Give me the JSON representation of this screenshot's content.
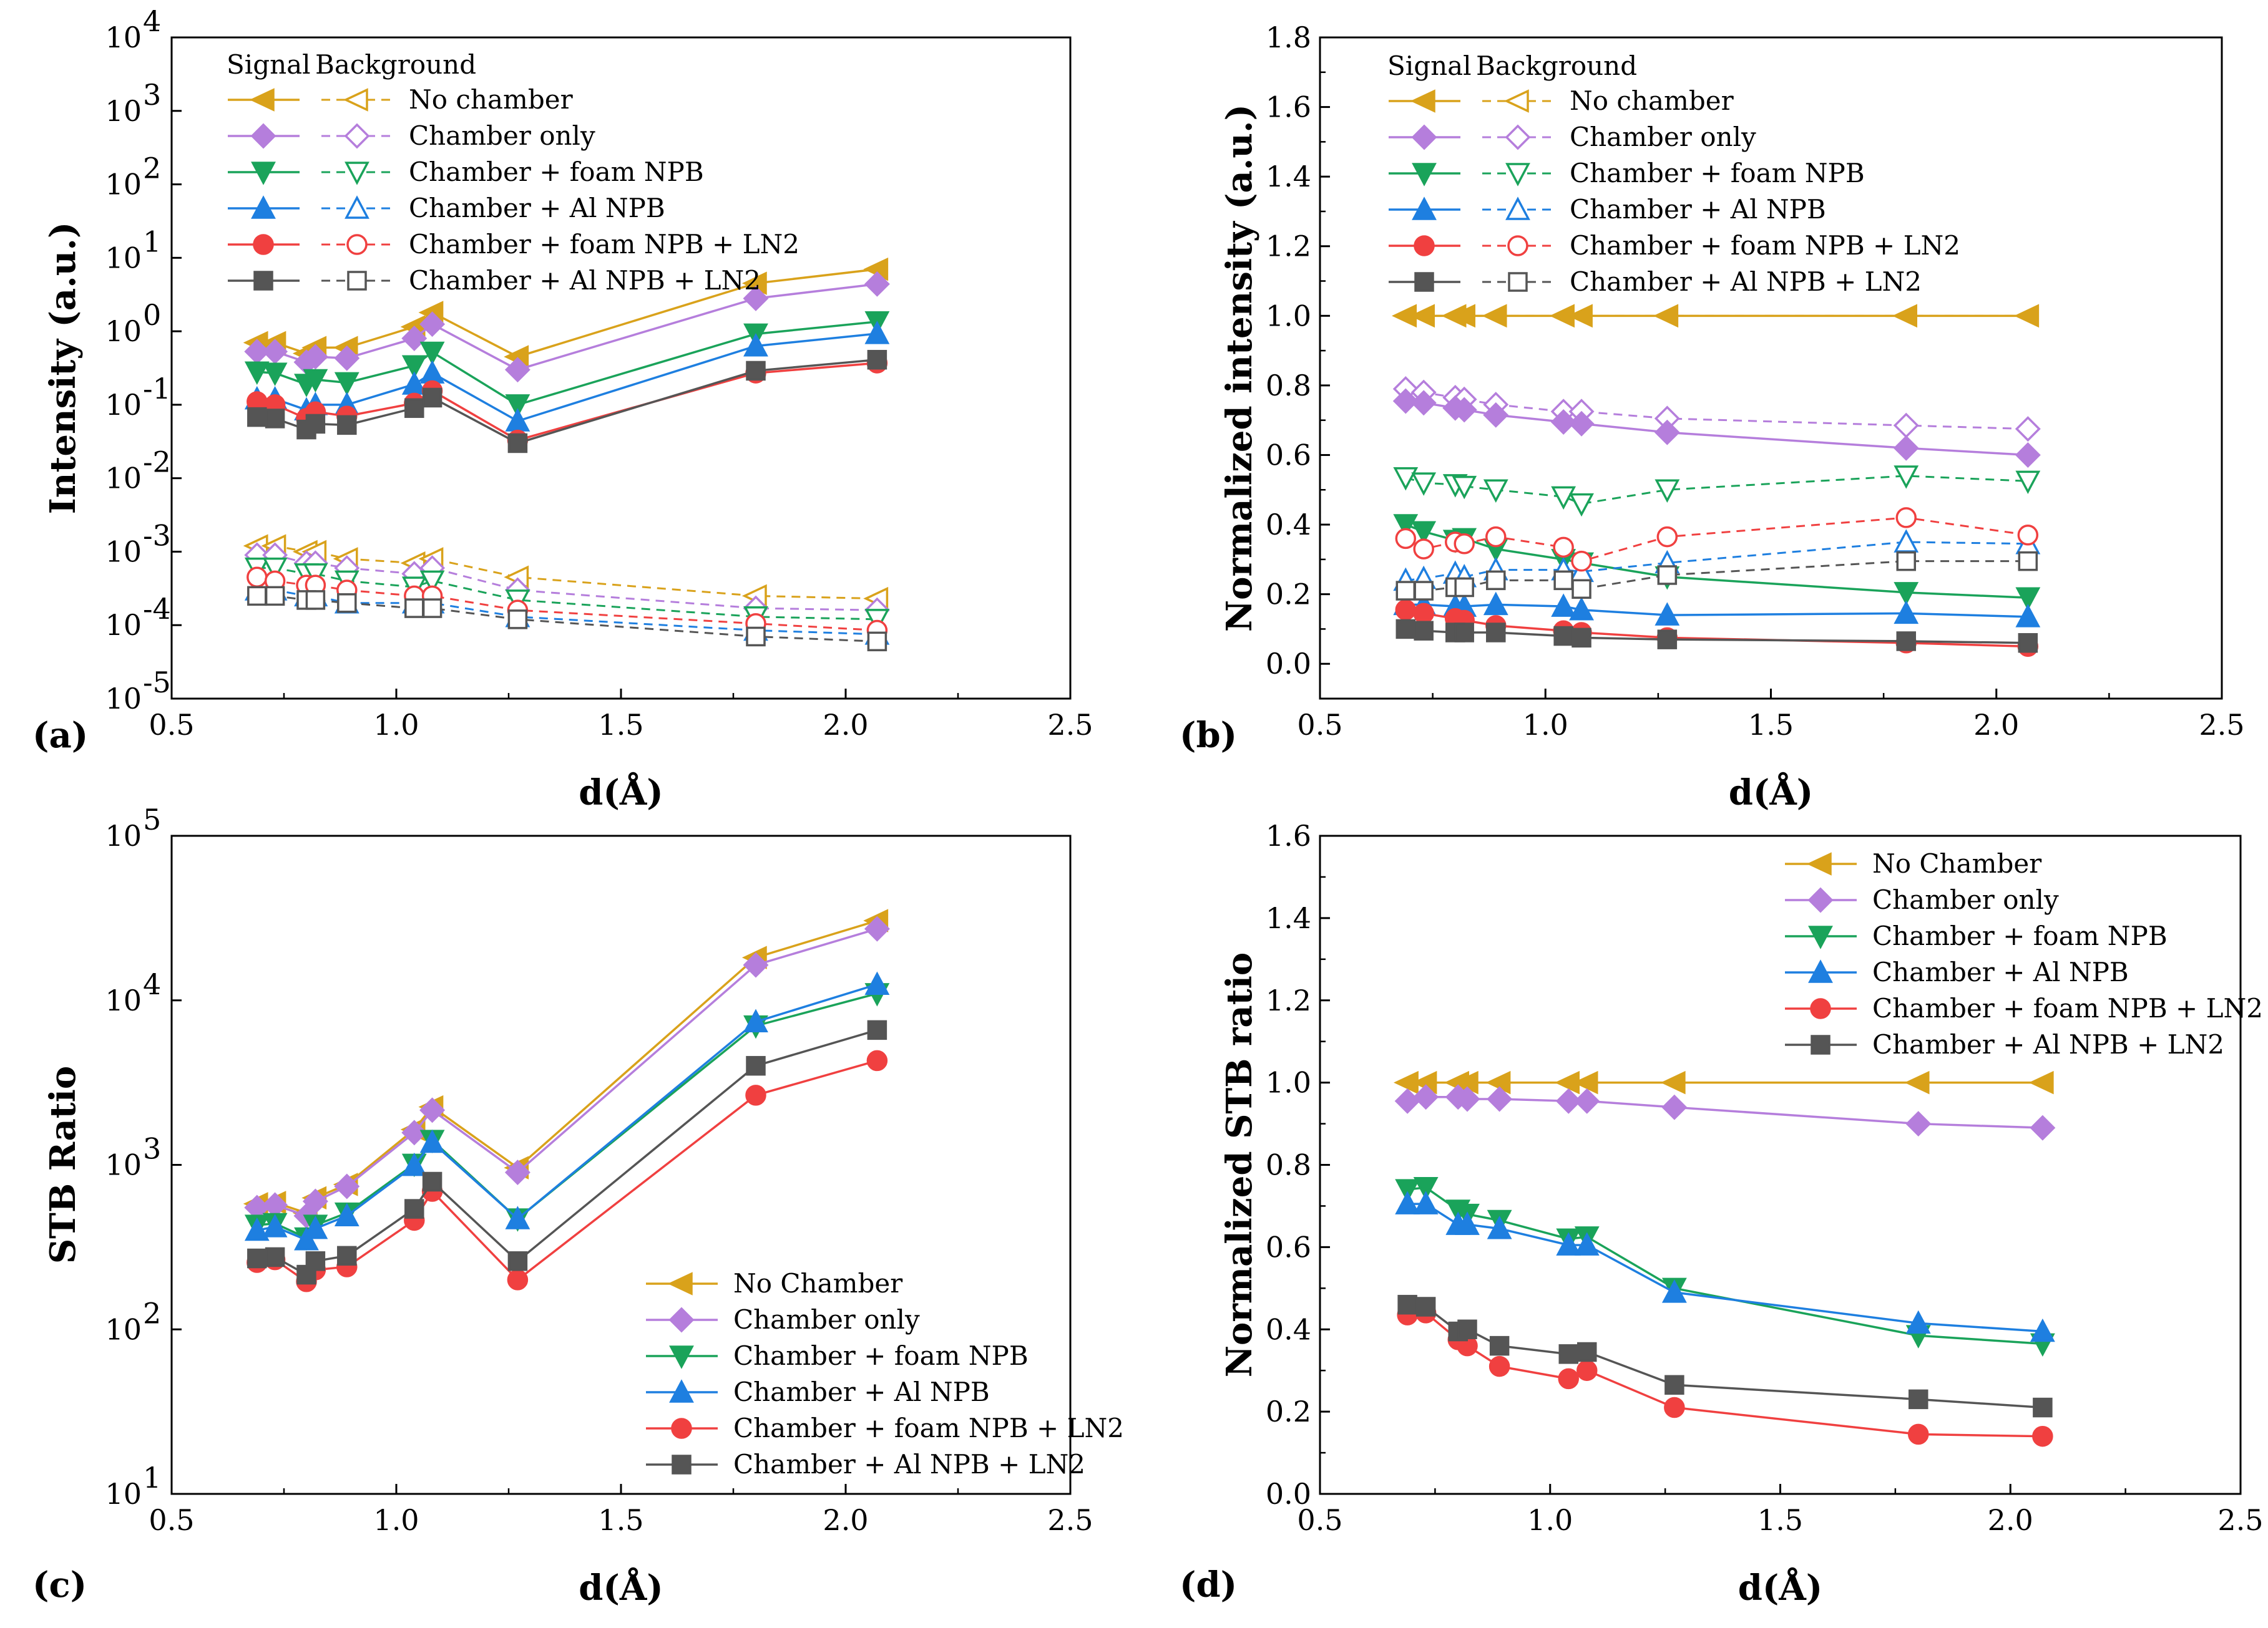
{
  "chart_data": [
    {
      "panel": "(a)",
      "type": "line",
      "yscale": "log",
      "xlabel": "d(Å)",
      "ylabel": "Intensity (a.u.)",
      "xlim": [
        0.5,
        2.5
      ],
      "ylim": [
        1e-05,
        10000.0
      ],
      "xticks": [
        "0.5",
        "1.0",
        "1.5",
        "2.0",
        "2.5"
      ],
      "ytick_exponents": [
        "4",
        "3",
        "2",
        "1",
        "0",
        "-1",
        "-2",
        "-3",
        "-4",
        "-5"
      ],
      "legend_header": [
        "Signal",
        "Background"
      ],
      "x": [
        0.69,
        0.73,
        0.8,
        0.82,
        0.89,
        1.04,
        1.08,
        1.27,
        1.8,
        2.07
      ],
      "series": [
        {
          "name": "No chamber",
          "color": "#D9A21B",
          "marker": "tri-left",
          "signal": [
            0.7,
            0.7,
            0.5,
            0.6,
            0.6,
            1.15,
            1.8,
            0.45,
            4.5,
            7.0
          ],
          "background": [
            0.0012,
            0.0012,
            0.001,
            0.001,
            0.0008,
            0.0007,
            0.0008,
            0.00045,
            0.00025,
            0.00023
          ]
        },
        {
          "name": "Chamber only",
          "color": "#B57EDC",
          "marker": "diamond",
          "signal": [
            0.53,
            0.53,
            0.38,
            0.45,
            0.43,
            0.8,
            1.25,
            0.3,
            2.8,
            4.4
          ],
          "background": [
            0.0009,
            0.0009,
            0.0007,
            0.0007,
            0.0006,
            0.0005,
            0.0006,
            0.0003,
            0.00017,
            0.00016
          ]
        },
        {
          "name": "Chamber + foam NPB",
          "color": "#1AA35A",
          "marker": "tri-down",
          "signal": [
            0.28,
            0.27,
            0.19,
            0.22,
            0.2,
            0.34,
            0.52,
            0.1,
            0.92,
            1.35
          ],
          "background": [
            0.0006,
            0.0006,
            0.0005,
            0.0005,
            0.0004,
            0.00033,
            0.0004,
            0.00022,
            0.00013,
            0.00012
          ]
        },
        {
          "name": "Chamber + Al NPB",
          "color": "#1E7FE0",
          "marker": "tri-up",
          "signal": [
            0.12,
            0.12,
            0.085,
            0.1,
            0.1,
            0.19,
            0.27,
            0.06,
            0.63,
            0.93
          ],
          "background": [
            0.0003,
            0.0003,
            0.00025,
            0.00025,
            0.0002,
            0.0002,
            0.0002,
            0.00013,
            8.5e-05,
            7.5e-05
          ]
        },
        {
          "name": "Chamber + foam NPB + LN2",
          "color": "#F04040",
          "marker": "circle",
          "signal": [
            0.11,
            0.1,
            0.065,
            0.08,
            0.07,
            0.105,
            0.155,
            0.033,
            0.27,
            0.37
          ],
          "background": [
            0.00045,
            0.0004,
            0.00035,
            0.00035,
            0.0003,
            0.00025,
            0.00025,
            0.00016,
            0.000105,
            8.5e-05
          ]
        },
        {
          "name": "Chamber + Al NPB + LN2",
          "color": "#555555",
          "marker": "square",
          "signal": [
            0.068,
            0.065,
            0.046,
            0.055,
            0.053,
            0.09,
            0.125,
            0.03,
            0.29,
            0.41
          ],
          "background": [
            0.00025,
            0.00025,
            0.00022,
            0.00022,
            0.0002,
            0.00017,
            0.00017,
            0.00012,
            7e-05,
            6e-05
          ]
        }
      ]
    },
    {
      "panel": "(b)",
      "type": "line",
      "yscale": "linear",
      "xlabel": "d(Å)",
      "ylabel": "Normalized intensity (a.u.)",
      "xlim": [
        0.5,
        2.5
      ],
      "ylim": [
        -0.1,
        1.8
      ],
      "xticks": [
        "0.5",
        "1.0",
        "1.5",
        "2.0",
        "2.5"
      ],
      "yticks": [
        "0.0",
        "0.2",
        "0.4",
        "0.6",
        "0.8",
        "1.0",
        "1.2",
        "1.4",
        "1.6",
        "1.8"
      ],
      "legend_header": [
        "Signal",
        "Background"
      ],
      "x": [
        0.69,
        0.73,
        0.8,
        0.82,
        0.89,
        1.04,
        1.08,
        1.27,
        1.8,
        2.07
      ],
      "series": [
        {
          "name": "No chamber",
          "color": "#D9A21B",
          "marker": "tri-left",
          "signal": [
            1.0,
            1.0,
            1.0,
            1.0,
            1.0,
            1.0,
            1.0,
            1.0,
            1.0,
            1.0
          ],
          "background": [
            1.0,
            1.0,
            1.0,
            1.0,
            1.0,
            1.0,
            1.0,
            1.0,
            1.0,
            1.0
          ]
        },
        {
          "name": "Chamber only",
          "color": "#B57EDC",
          "marker": "diamond",
          "signal": [
            0.755,
            0.75,
            0.735,
            0.73,
            0.715,
            0.695,
            0.69,
            0.665,
            0.62,
            0.6
          ],
          "background": [
            0.79,
            0.78,
            0.765,
            0.76,
            0.745,
            0.725,
            0.725,
            0.705,
            0.685,
            0.675
          ]
        },
        {
          "name": "Chamber + foam NPB",
          "color": "#1AA35A",
          "marker": "tri-down",
          "signal": [
            0.4,
            0.38,
            0.355,
            0.36,
            0.33,
            0.3,
            0.29,
            0.25,
            0.205,
            0.19
          ],
          "background": [
            0.535,
            0.52,
            0.515,
            0.51,
            0.5,
            0.48,
            0.46,
            0.5,
            0.54,
            0.525
          ]
        },
        {
          "name": "Chamber + Al NPB",
          "color": "#1E7FE0",
          "marker": "tri-up",
          "signal": [
            0.17,
            0.17,
            0.165,
            0.165,
            0.17,
            0.165,
            0.155,
            0.14,
            0.145,
            0.135
          ],
          "background": [
            0.24,
            0.245,
            0.26,
            0.25,
            0.27,
            0.27,
            0.265,
            0.29,
            0.35,
            0.345
          ]
        },
        {
          "name": "Chamber + foam NPB + LN2",
          "color": "#F04040",
          "marker": "circle",
          "signal": [
            0.155,
            0.145,
            0.13,
            0.125,
            0.11,
            0.095,
            0.09,
            0.075,
            0.06,
            0.05
          ],
          "background": [
            0.36,
            0.33,
            0.35,
            0.345,
            0.365,
            0.335,
            0.295,
            0.365,
            0.42,
            0.37
          ]
        },
        {
          "name": "Chamber + Al NPB + LN2",
          "color": "#555555",
          "marker": "square",
          "signal": [
            0.1,
            0.095,
            0.09,
            0.09,
            0.09,
            0.08,
            0.075,
            0.07,
            0.065,
            0.06
          ],
          "background": [
            0.21,
            0.21,
            0.22,
            0.22,
            0.24,
            0.24,
            0.215,
            0.255,
            0.295,
            0.295
          ]
        }
      ]
    },
    {
      "panel": "(c)",
      "type": "line",
      "yscale": "log",
      "xlabel": "d(Å)",
      "ylabel": "STB Ratio",
      "xlim": [
        0.5,
        2.5
      ],
      "ylim": [
        10,
        100000
      ],
      "xticks": [
        "0.5",
        "1.0",
        "1.5",
        "2.0",
        "2.5"
      ],
      "ytick_exponents": [
        "5",
        "4",
        "3",
        "2",
        "1"
      ],
      "x": [
        0.69,
        0.73,
        0.8,
        0.82,
        0.89,
        1.04,
        1.08,
        1.27,
        1.8,
        2.07
      ],
      "series": [
        {
          "name": "No Chamber",
          "color": "#D9A21B",
          "marker": "tri-left",
          "values": [
            580,
            590,
            510,
            630,
            760,
            1640,
            2250,
            960,
            18200,
            30500
          ]
        },
        {
          "name": "Chamber only",
          "color": "#B57EDC",
          "marker": "diamond",
          "values": [
            550,
            570,
            490,
            600,
            740,
            1570,
            2150,
            900,
            16400,
            27200
          ]
        },
        {
          "name": "Chamber + foam NPB",
          "color": "#1AA35A",
          "marker": "tri-down",
          "values": [
            430,
            440,
            360,
            430,
            510,
            1010,
            1410,
            470,
            7000,
            11000
          ]
        },
        {
          "name": "Chamber + Al NPB",
          "color": "#1E7FE0",
          "marker": "tri-up",
          "values": [
            400,
            420,
            350,
            410,
            490,
            990,
            1370,
            470,
            7400,
            12500
          ]
        },
        {
          "name": "Chamber + foam NPB + LN2",
          "color": "#F04040",
          "marker": "circle",
          "values": [
            255,
            265,
            195,
            230,
            240,
            460,
            690,
            200,
            2650,
            4300
          ]
        },
        {
          "name": "Chamber + Al NPB + LN2",
          "color": "#555555",
          "marker": "square",
          "values": [
            270,
            275,
            215,
            260,
            280,
            540,
            790,
            260,
            4000,
            6600
          ]
        }
      ]
    },
    {
      "panel": "(d)",
      "type": "line",
      "yscale": "linear",
      "xlabel": "d(Å)",
      "ylabel": "Normalized STB ratio",
      "xlim": [
        0.5,
        2.5
      ],
      "ylim": [
        0.0,
        1.6
      ],
      "xticks": [
        "0.5",
        "1.0",
        "1.5",
        "2.0",
        "2.5"
      ],
      "yticks": [
        "0.0",
        "0.2",
        "0.4",
        "0.6",
        "0.8",
        "1.0",
        "1.2",
        "1.4",
        "1.6"
      ],
      "x": [
        0.69,
        0.73,
        0.8,
        0.82,
        0.89,
        1.04,
        1.08,
        1.27,
        1.8,
        2.07
      ],
      "series": [
        {
          "name": "No Chamber",
          "color": "#D9A21B",
          "marker": "tri-left",
          "values": [
            1.0,
            1.0,
            1.0,
            1.0,
            1.0,
            1.0,
            1.0,
            1.0,
            1.0,
            1.0
          ]
        },
        {
          "name": "Chamber only",
          "color": "#B57EDC",
          "marker": "diamond",
          "values": [
            0.955,
            0.965,
            0.965,
            0.96,
            0.96,
            0.955,
            0.955,
            0.94,
            0.9,
            0.89
          ]
        },
        {
          "name": "Chamber + foam NPB",
          "color": "#1AA35A",
          "marker": "tri-down",
          "values": [
            0.74,
            0.745,
            0.69,
            0.68,
            0.665,
            0.62,
            0.625,
            0.5,
            0.385,
            0.365
          ]
        },
        {
          "name": "Chamber + Al NPB",
          "color": "#1E7FE0",
          "marker": "tri-up",
          "values": [
            0.705,
            0.705,
            0.655,
            0.655,
            0.645,
            0.605,
            0.605,
            0.49,
            0.415,
            0.395
          ]
        },
        {
          "name": "Chamber + foam NPB + LN2",
          "color": "#F04040",
          "marker": "circle",
          "values": [
            0.435,
            0.44,
            0.375,
            0.36,
            0.31,
            0.28,
            0.3,
            0.21,
            0.145,
            0.14
          ]
        },
        {
          "name": "Chamber + Al NPB + LN2",
          "color": "#555555",
          "marker": "square",
          "values": [
            0.46,
            0.455,
            0.395,
            0.4,
            0.36,
            0.34,
            0.345,
            0.265,
            0.23,
            0.21
          ]
        }
      ]
    }
  ]
}
